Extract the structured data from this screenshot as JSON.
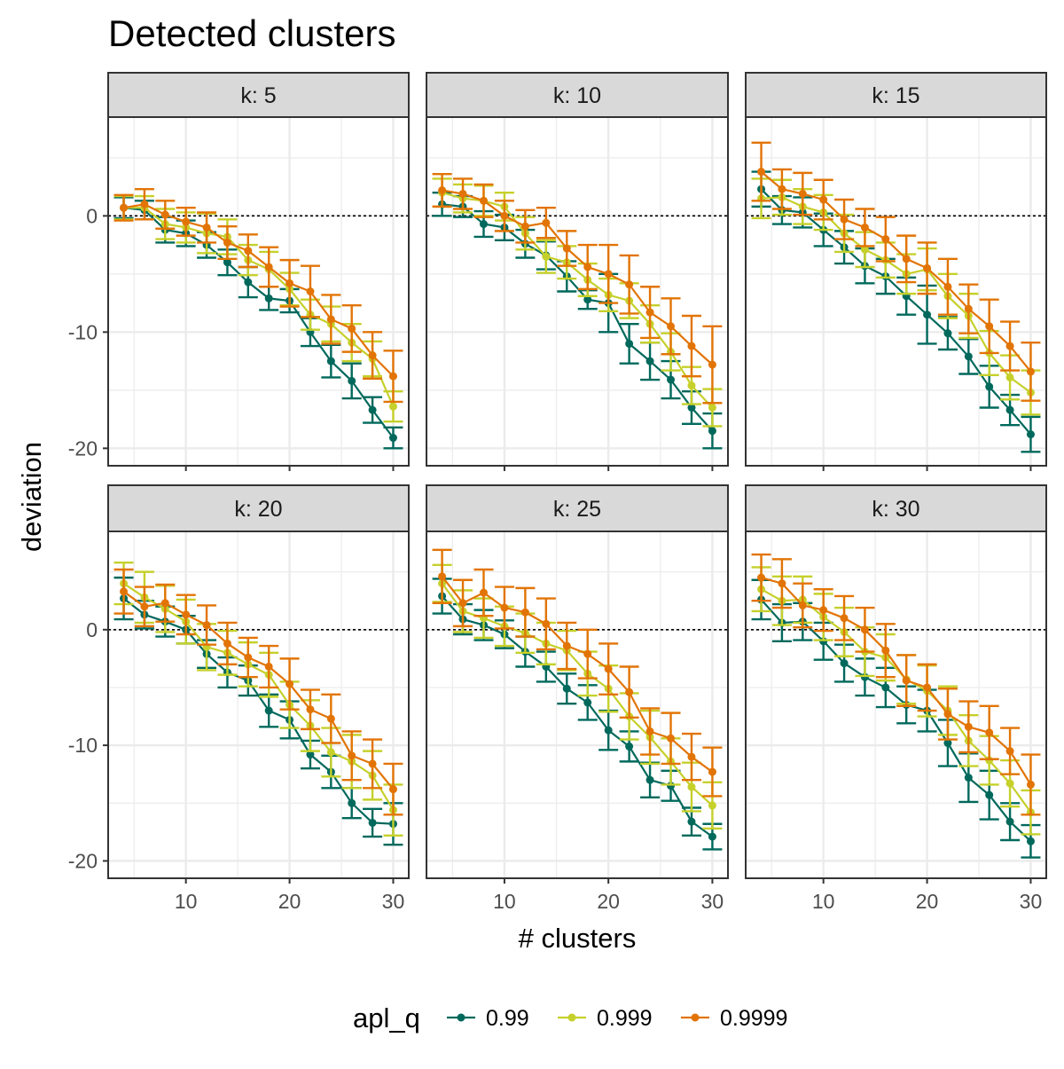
{
  "chart_data": {
    "type": "line",
    "title": "Detected clusters",
    "xlabel": "# clusters",
    "ylabel": "deviation",
    "xlim": [
      2.5,
      31.5
    ],
    "ylim": [
      -21.5,
      8.5
    ],
    "x_ticks": [
      10,
      20,
      30
    ],
    "y_ticks": [
      0,
      -10,
      -20
    ],
    "reference_line": 0,
    "grid": true,
    "legend": {
      "title": "apl_q",
      "position": "bottom"
    },
    "x": [
      4,
      6,
      8,
      10,
      12,
      14,
      16,
      18,
      20,
      22,
      24,
      26,
      28,
      30
    ],
    "panels": [
      {
        "label": "k: 5",
        "series": [
          {
            "name": "0.99",
            "color": "#00695c",
            "values": [
              0.7,
              0.5,
              -1.2,
              -1.5,
              -2.5,
              -4.0,
              -5.7,
              -7.1,
              -7.3,
              -10.0,
              -12.5,
              -14.2,
              -16.7,
              -19.1
            ],
            "err": [
              0.9,
              0.8,
              1.1,
              1.1,
              1.1,
              1.1,
              1.3,
              1.0,
              1.0,
              1.2,
              1.4,
              1.5,
              1.1,
              0.9
            ]
          },
          {
            "name": "0.999",
            "color": "#c6d02b",
            "values": [
              0.7,
              0.7,
              -0.7,
              -1.0,
              -1.5,
              -1.8,
              -3.8,
              -4.6,
              -6.3,
              -8.5,
              -9.3,
              -10.9,
              -12.3,
              -16.4
            ],
            "err": [
              1.0,
              1.0,
              1.3,
              1.3,
              1.7,
              1.5,
              1.3,
              1.5,
              1.4,
              1.3,
              1.5,
              1.6,
              1.5,
              1.3
            ]
          },
          {
            "name": "0.9999",
            "color": "#e27405",
            "values": [
              0.7,
              1.0,
              0.1,
              -0.5,
              -1.0,
              -2.3,
              -3.0,
              -4.4,
              -5.8,
              -6.5,
              -8.9,
              -9.7,
              -12.0,
              -13.8
            ],
            "err": [
              1.1,
              1.3,
              1.2,
              1.2,
              1.3,
              1.4,
              1.4,
              1.7,
              2.0,
              2.2,
              2.1,
              2.0,
              2.0,
              2.2
            ]
          }
        ]
      },
      {
        "label": "k: 10",
        "series": [
          {
            "name": "0.99",
            "color": "#00695c",
            "values": [
              1.0,
              0.8,
              -0.7,
              -1.0,
              -2.4,
              -3.4,
              -5.2,
              -7.2,
              -7.5,
              -11.0,
              -12.5,
              -14.1,
              -16.5,
              -18.5
            ],
            "err": [
              1.0,
              0.9,
              1.1,
              1.1,
              1.2,
              1.2,
              1.3,
              0.8,
              2.5,
              1.7,
              1.6,
              1.6,
              1.4,
              1.5
            ]
          },
          {
            "name": "0.999",
            "color": "#c6d02b",
            "values": [
              2.0,
              1.5,
              1.3,
              0.8,
              -1.5,
              -3.5,
              -4.0,
              -5.5,
              -6.8,
              -7.3,
              -9.3,
              -11.7,
              -14.6,
              -16.5
            ],
            "err": [
              1.2,
              1.2,
              1.3,
              1.2,
              1.4,
              1.4,
              1.4,
              1.4,
              1.4,
              1.5,
              1.6,
              1.6,
              1.6,
              1.6
            ]
          },
          {
            "name": "0.9999",
            "color": "#e27405",
            "values": [
              2.2,
              1.9,
              1.3,
              0.0,
              -0.9,
              -0.6,
              -2.8,
              -4.4,
              -5.0,
              -5.9,
              -8.3,
              -9.5,
              -11.2,
              -12.8
            ],
            "err": [
              1.4,
              1.3,
              1.4,
              1.3,
              1.4,
              1.3,
              1.5,
              1.9,
              2.5,
              2.5,
              2.2,
              2.4,
              2.6,
              3.3
            ]
          }
        ]
      },
      {
        "label": "k: 15",
        "series": [
          {
            "name": "0.99",
            "color": "#00695c",
            "values": [
              2.3,
              0.5,
              0.3,
              -1.2,
              -2.7,
              -4.3,
              -5.2,
              -6.9,
              -8.5,
              -10.1,
              -12.1,
              -14.7,
              -16.7,
              -18.8
            ],
            "err": [
              1.5,
              1.2,
              1.3,
              1.4,
              1.4,
              1.5,
              1.5,
              1.6,
              2.5,
              1.4,
              1.5,
              1.8,
              1.3,
              1.5
            ]
          },
          {
            "name": "0.999",
            "color": "#c6d02b",
            "values": [
              1.5,
              1.6,
              0.8,
              0.3,
              -1.5,
              -2.9,
              -3.8,
              -5.0,
              -4.6,
              -6.9,
              -8.6,
              -11.8,
              -13.9,
              -15.2
            ],
            "err": [
              1.7,
              1.5,
              1.5,
              1.5,
              1.6,
              1.5,
              1.5,
              1.7,
              1.8,
              1.9,
              1.9,
              1.9,
              1.9,
              1.9
            ]
          },
          {
            "name": "0.9999",
            "color": "#e27405",
            "values": [
              3.8,
              2.3,
              1.9,
              1.4,
              -0.3,
              -1.0,
              -2.0,
              -3.7,
              -4.5,
              -6.1,
              -8.0,
              -9.5,
              -11.2,
              -13.4
            ],
            "err": [
              2.5,
              1.7,
              1.8,
              1.7,
              1.7,
              1.6,
              1.9,
              2.0,
              2.2,
              2.4,
              2.1,
              2.3,
              2.1,
              2.5
            ]
          }
        ]
      },
      {
        "label": "k: 20",
        "series": [
          {
            "name": "0.99",
            "color": "#00695c",
            "values": [
              2.7,
              1.3,
              0.7,
              0.0,
              -2.1,
              -3.7,
              -4.4,
              -7.0,
              -7.8,
              -10.8,
              -12.3,
              -15.0,
              -16.7,
              -16.8
            ],
            "err": [
              1.8,
              1.2,
              1.3,
              1.2,
              1.2,
              1.3,
              1.3,
              1.4,
              1.6,
              1.2,
              1.4,
              1.3,
              1.2,
              1.8
            ]
          },
          {
            "name": "0.999",
            "color": "#c6d02b",
            "values": [
              4.0,
              2.8,
              1.8,
              0.7,
              -1.5,
              -2.0,
              -3.0,
              -3.9,
              -6.5,
              -8.3,
              -10.6,
              -11.4,
              -12.6,
              -15.6
            ],
            "err": [
              1.8,
              2.2,
              2.0,
              1.9,
              2.0,
              1.9,
              1.9,
              1.9,
              2.0,
              2.2,
              2.1,
              2.3,
              2.1,
              2.2
            ]
          },
          {
            "name": "0.9999",
            "color": "#e27405",
            "values": [
              3.3,
              2.0,
              2.3,
              1.3,
              0.4,
              -1.2,
              -2.4,
              -3.2,
              -4.7,
              -6.9,
              -7.7,
              -10.9,
              -11.6,
              -13.8
            ],
            "err": [
              1.9,
              1.7,
              1.6,
              1.7,
              1.7,
              1.8,
              1.7,
              1.8,
              2.2,
              1.7,
              2.1,
              2.1,
              2.1,
              2.2
            ]
          }
        ]
      },
      {
        "label": "k: 25",
        "series": [
          {
            "name": "0.99",
            "color": "#00695c",
            "values": [
              2.9,
              0.9,
              0.4,
              -0.4,
              -1.9,
              -3.2,
              -5.1,
              -6.3,
              -8.7,
              -10.1,
              -13.0,
              -13.5,
              -16.6,
              -17.9
            ],
            "err": [
              1.5,
              1.3,
              1.3,
              1.2,
              1.3,
              1.3,
              1.3,
              1.5,
              1.7,
              1.3,
              1.5,
              1.3,
              1.2,
              1.1
            ]
          },
          {
            "name": "0.999",
            "color": "#c6d02b",
            "values": [
              4.0,
              1.6,
              1.0,
              0.3,
              -0.3,
              -1.2,
              -1.8,
              -3.8,
              -5.1,
              -7.5,
              -9.3,
              -11.4,
              -13.6,
              -15.2
            ],
            "err": [
              1.6,
              1.8,
              1.7,
              1.7,
              1.7,
              1.8,
              1.7,
              1.9,
              2.0,
              2.0,
              2.3,
              2.0,
              2.1,
              2.0
            ]
          },
          {
            "name": "0.9999",
            "color": "#e27405",
            "values": [
              4.6,
              2.3,
              3.2,
              1.9,
              1.5,
              0.5,
              -1.4,
              -2.1,
              -3.4,
              -5.4,
              -8.8,
              -9.4,
              -11.0,
              -12.3
            ],
            "err": [
              2.3,
              2.0,
              2.0,
              1.8,
              2.1,
              2.2,
              2.0,
              2.1,
              2.2,
              2.2,
              2.0,
              2.2,
              2.0,
              2.1
            ]
          }
        ]
      },
      {
        "label": "k: 30",
        "series": [
          {
            "name": "0.99",
            "color": "#00695c",
            "values": [
              2.6,
              0.6,
              0.7,
              -1.0,
              -2.9,
              -4.1,
              -5.0,
              -6.5,
              -7.0,
              -9.8,
              -12.8,
              -14.3,
              -16.6,
              -18.3
            ],
            "err": [
              1.7,
              1.6,
              1.6,
              1.6,
              1.6,
              1.6,
              1.7,
              1.6,
              1.8,
              2.0,
              2.1,
              2.1,
              1.6,
              1.4
            ]
          },
          {
            "name": "0.999",
            "color": "#c6d02b",
            "values": [
              3.5,
              2.5,
              2.6,
              1.1,
              -0.2,
              -1.9,
              -2.4,
              -4.3,
              -5.3,
              -7.0,
              -9.6,
              -11.3,
              -13.3,
              -15.8
            ],
            "err": [
              1.9,
              2.1,
              2.0,
              2.0,
              2.1,
              2.1,
              2.0,
              2.1,
              2.2,
              2.1,
              2.2,
              2.1,
              2.0,
              1.9
            ]
          },
          {
            "name": "0.9999",
            "color": "#e27405",
            "values": [
              4.5,
              4.0,
              2.1,
              1.7,
              1.0,
              0.0,
              -1.8,
              -4.4,
              -5.0,
              -7.3,
              -8.4,
              -8.9,
              -10.5,
              -13.4
            ],
            "err": [
              2.0,
              2.1,
              1.9,
              1.8,
              1.9,
              1.9,
              2.3,
              2.2,
              2.0,
              2.2,
              2.2,
              2.3,
              2.0,
              2.6
            ]
          }
        ]
      }
    ]
  }
}
